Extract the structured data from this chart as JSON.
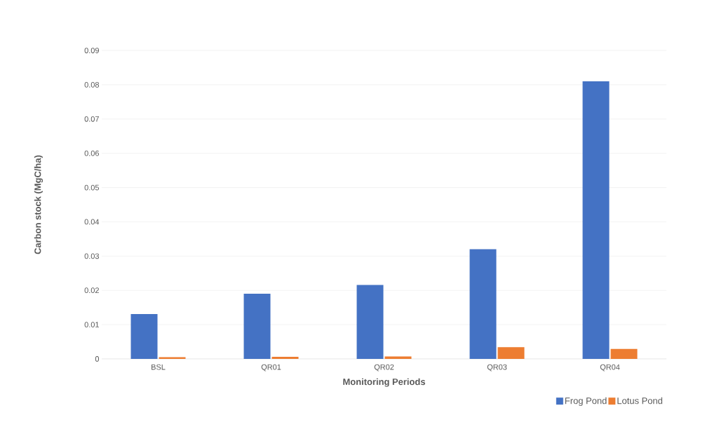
{
  "chart_data": {
    "type": "bar",
    "xlabel": "Monitoring Periods",
    "ylabel": "Carbon stock (MgC/ha)",
    "categories": [
      "BSL",
      "QR01",
      "QR02",
      "QR03",
      "QR04"
    ],
    "series": [
      {
        "name": "Frog Pond",
        "color": "#4472c4",
        "values": [
          0.0131,
          0.019,
          0.0216,
          0.032,
          0.081
        ]
      },
      {
        "name": "Lotus Pond",
        "color": "#ed7d31",
        "values": [
          0.0005,
          0.0006,
          0.0007,
          0.0034,
          0.0029
        ]
      }
    ],
    "ylim": [
      0,
      0.09
    ],
    "yticks": [
      0,
      0.01,
      0.02,
      0.03,
      0.04,
      0.05,
      0.06,
      0.07,
      0.08,
      0.09
    ],
    "grid": "y",
    "legend": "bottom right"
  }
}
